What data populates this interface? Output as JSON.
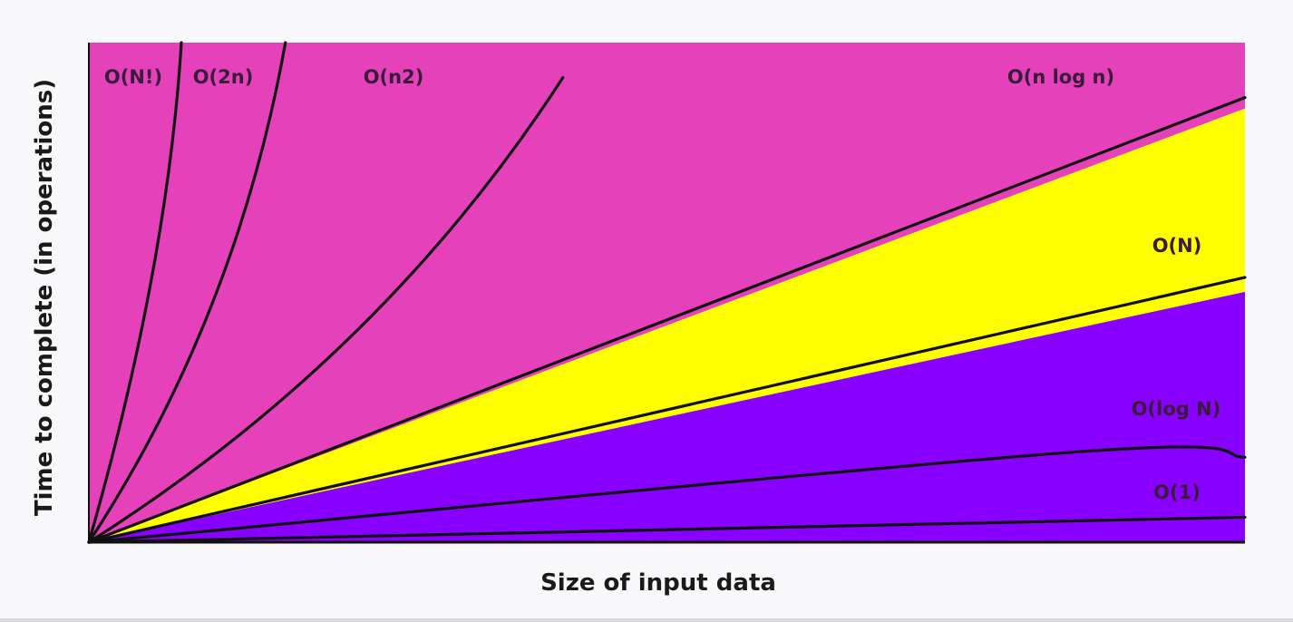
{
  "chart_data": {
    "type": "area",
    "title": "",
    "xlabel": "Size of input data",
    "ylabel": "Time to complete (in operations)",
    "x_ticks": [],
    "y_ticks": [],
    "grid": false,
    "legend": "none",
    "region_colors": {
      "above_n_log_n": "#e541bb",
      "between_n_log_n_and_n": "#ffff00",
      "below_n": "#8800ff"
    },
    "line_color": "#111111",
    "series": [
      {
        "name": "O(N!)",
        "x": [
          0,
          0.08
        ],
        "y": [
          0,
          1.0
        ]
      },
      {
        "name": "O(2n)",
        "x": [
          0,
          0.17
        ],
        "y": [
          0,
          1.0
        ]
      },
      {
        "name": "O(n2)",
        "x": [
          0,
          0.41
        ],
        "y": [
          0,
          0.93
        ]
      },
      {
        "name": "O(n log n)",
        "x": [
          0,
          1.0
        ],
        "y": [
          0,
          0.89
        ]
      },
      {
        "name": "O(N)",
        "x": [
          0,
          1.0
        ],
        "y": [
          0,
          0.53
        ]
      },
      {
        "name": "O(log N)",
        "x": [
          0,
          0.85,
          1.0
        ],
        "y": [
          0,
          0.18,
          0.17
        ]
      },
      {
        "name": "O(1)",
        "x": [
          0,
          1.0
        ],
        "y": [
          0,
          0.05
        ]
      }
    ]
  }
}
